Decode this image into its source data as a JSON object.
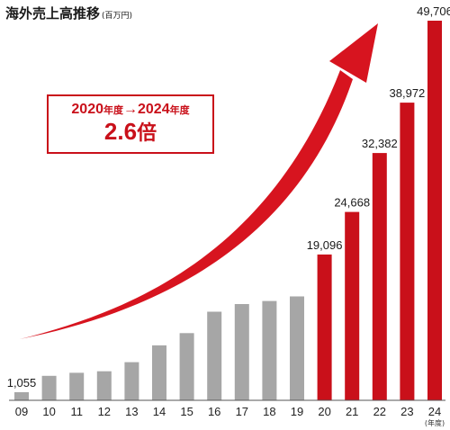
{
  "header": {
    "title": "海外売上高推移",
    "unit": "(百万円)"
  },
  "callout": {
    "period_start": "2020",
    "period_end": "2024",
    "year_suffix": "年度",
    "arrow": "→",
    "multiplier_value": "2.6",
    "multiplier_unit": "倍"
  },
  "colors": {
    "past": "#a6a6a6",
    "recent": "#c9101a",
    "arrow": "#d7141f",
    "axis": "#555555"
  },
  "icons": {
    "growth_arrow": "growth-arrow-icon"
  },
  "chart_data": {
    "type": "bar",
    "title": "海外売上高推移",
    "ylabel": "",
    "xlabel": "",
    "x_unit_label": "(年度)",
    "categories": [
      "09",
      "10",
      "11",
      "12",
      "13",
      "14",
      "15",
      "16",
      "17",
      "18",
      "19",
      "20",
      "21",
      "22",
      "23",
      "24"
    ],
    "values": [
      1055,
      3200,
      3600,
      3800,
      5000,
      7200,
      8800,
      11600,
      12600,
      13000,
      13600,
      19096,
      24668,
      32382,
      38972,
      49706
    ],
    "value_labels": [
      "1,055",
      null,
      null,
      null,
      null,
      null,
      null,
      null,
      null,
      null,
      null,
      "19,096",
      "24,668",
      "32,382",
      "38,972",
      "49,706"
    ],
    "highlight_from_index": 11,
    "ylim": [
      0,
      49706
    ],
    "grid": false,
    "legend": "none"
  }
}
